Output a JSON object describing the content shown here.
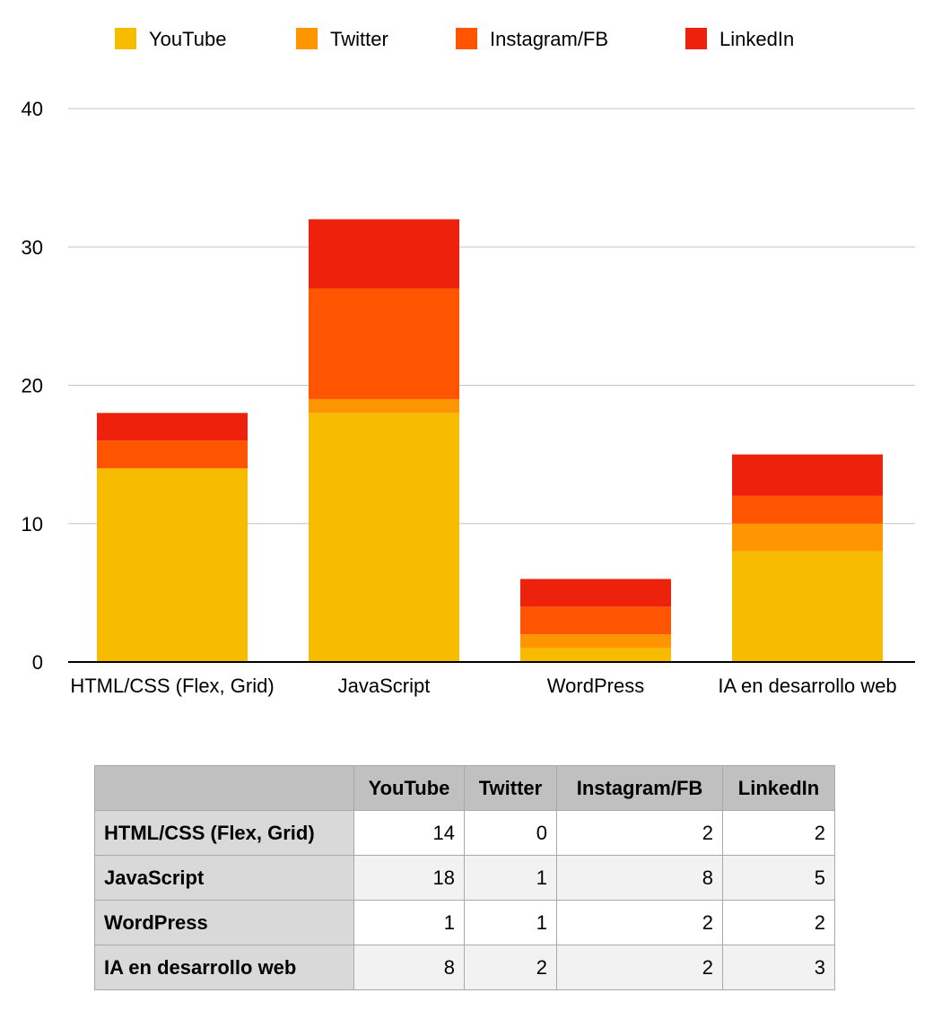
{
  "chart_data": {
    "type": "bar",
    "stacked": true,
    "categories": [
      "HTML/CSS (Flex, Grid)",
      "JavaScript",
      "WordPress",
      "IA en desarrollo web"
    ],
    "series": [
      {
        "name": "YouTube",
        "values": [
          14,
          18,
          1,
          8
        ],
        "color": "#F7BB00"
      },
      {
        "name": "Twitter",
        "values": [
          0,
          1,
          1,
          2
        ],
        "color": "#FF9500"
      },
      {
        "name": "Instagram/FB",
        "values": [
          2,
          8,
          2,
          2
        ],
        "color": "#FF5500"
      },
      {
        "name": "LinkedIn",
        "values": [
          2,
          5,
          2,
          3
        ],
        "color": "#EE220C"
      }
    ],
    "ylim": [
      0,
      40
    ],
    "yticks": [
      0,
      10,
      20,
      30,
      40
    ],
    "grid": true,
    "legend": "top"
  },
  "table": {
    "headers": [
      "",
      "YouTube",
      "Twitter",
      "Instagram/FB",
      "LinkedIn"
    ],
    "rows": [
      {
        "label": "HTML/CSS (Flex, Grid)",
        "values": [
          "14",
          "0",
          "2",
          "2"
        ]
      },
      {
        "label": "JavaScript",
        "values": [
          "18",
          "1",
          "8",
          "5"
        ]
      },
      {
        "label": "WordPress",
        "values": [
          "1",
          "1",
          "2",
          "2"
        ]
      },
      {
        "label": "IA en desarrollo web",
        "values": [
          "8",
          "2",
          "2",
          "3"
        ]
      }
    ]
  }
}
